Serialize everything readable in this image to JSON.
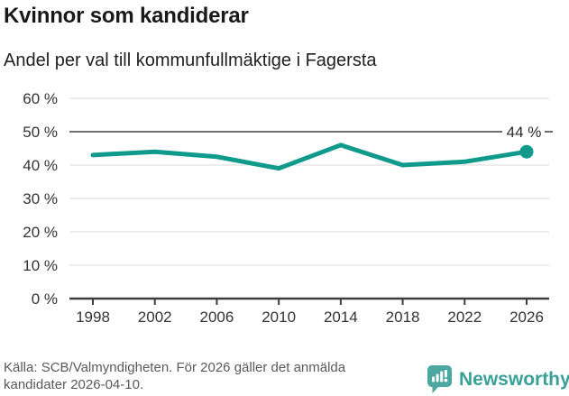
{
  "header": {
    "title": "Kvinnor som kandiderar",
    "subtitle": "Andel per val till kommunfullmäktige i Fagersta"
  },
  "chart_data": {
    "type": "line",
    "title": "Kvinnor som kandiderar",
    "subtitle": "Andel per val till kommunfullmäktige i Fagersta",
    "x": [
      1998,
      2002,
      2006,
      2010,
      2014,
      2018,
      2022,
      2026
    ],
    "x_tick_labels": [
      "1998",
      "2002",
      "2006",
      "2010",
      "2014",
      "2018",
      "2022",
      "2026"
    ],
    "values": [
      43,
      44,
      42.5,
      39,
      46,
      40,
      41,
      44
    ],
    "unit": "%",
    "ylim": [
      0,
      60
    ],
    "y_ticks": [
      0,
      10,
      20,
      30,
      40,
      50,
      60
    ],
    "y_tick_format": "{v} %",
    "reference_line": 50,
    "end_point_label": "44 %",
    "grid": true,
    "legend": "none",
    "line_color": "#0f9a8c",
    "grid_color": "#e7e7e7",
    "reference_line_color": "#6e6e6e",
    "axis_color": "#3d3d3d",
    "tick_label_color": "#333333",
    "end_label_color": "#2b2b2b"
  },
  "footer": {
    "source": "Källa: SCB/Valmyndigheten. För 2026 gäller det anmälda kandidater 2026-04-10."
  },
  "brand": {
    "name": "Newsworthy",
    "color": "#3aa198",
    "icon_color": "#4ba8a0"
  }
}
